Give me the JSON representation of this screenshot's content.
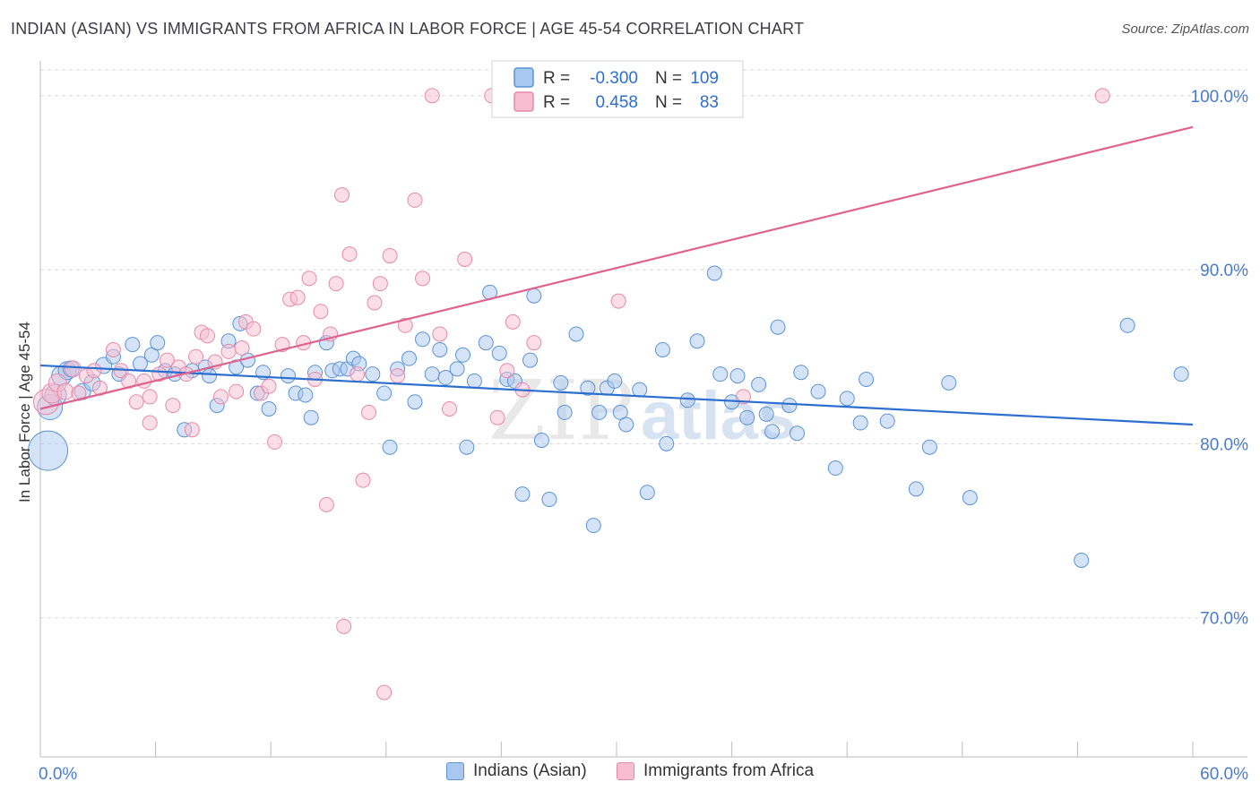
{
  "header": {
    "title": "INDIAN (ASIAN) VS IMMIGRANTS FROM AFRICA IN LABOR FORCE | AGE 45-54 CORRELATION CHART",
    "source": "Source: ZipAtlas.com"
  },
  "watermark": {
    "zip": "ZIP",
    "atlas": "atlas"
  },
  "legend_box": {
    "rows": [
      {
        "r_label": "R =",
        "r_value": "-0.300",
        "n_label": "N =",
        "n_value": "109"
      },
      {
        "r_label": "R =",
        "r_value": "0.458",
        "n_label": "N =",
        "n_value": "83"
      }
    ]
  },
  "colors": {
    "blue_fill": "#a9c8f0",
    "blue_stroke": "#5b93d6",
    "blue_line": "#2d6fce",
    "pink_fill": "#f7bdd0",
    "pink_stroke": "#e58aa8",
    "pink_line": "#e0628f",
    "tick_label": "#4a7cc9",
    "grid": "#d9d9d9"
  },
  "chart_data": {
    "type": "scatter",
    "title": "INDIAN (ASIAN) VS IMMIGRANTS FROM AFRICA IN LABOR FORCE | AGE 45-54 CORRELATION CHART",
    "xlabel": "",
    "ylabel": "In Labor Force | Age 45-54",
    "xlim": [
      0,
      60
    ],
    "ylim": [
      62,
      102
    ],
    "x_tick_labels": [
      {
        "value": 0,
        "label": "0.0%"
      },
      {
        "value": 60,
        "label": "60.0%"
      }
    ],
    "y_tick_labels": [
      {
        "value": 70,
        "label": "70.0%"
      },
      {
        "value": 80,
        "label": "80.0%"
      },
      {
        "value": 90,
        "label": "90.0%"
      },
      {
        "value": 100,
        "label": "100.0%"
      }
    ],
    "grid": true,
    "legend_position": "top-center",
    "series": [
      {
        "name": "Indians (Asian)",
        "color": "#a9c8f0",
        "trend": {
          "x": [
            0,
            60
          ],
          "y": [
            84.5,
            81.1
          ]
        },
        "points": [
          [
            0.4,
            79.6,
            22
          ],
          [
            0.5,
            82.1,
            14
          ],
          [
            0.8,
            82.8,
            12
          ],
          [
            1.1,
            83.9,
            11
          ],
          [
            1.4,
            84.2,
            10
          ],
          [
            1.6,
            84.3,
            9
          ],
          [
            2.2,
            83.0,
            9
          ],
          [
            2.7,
            83.5,
            9
          ],
          [
            3.3,
            84.5,
            9
          ],
          [
            3.8,
            85.0,
            8
          ],
          [
            4.1,
            84.0,
            8
          ],
          [
            4.8,
            85.7,
            8
          ],
          [
            5.2,
            84.6,
            8
          ],
          [
            5.8,
            85.1,
            8
          ],
          [
            6.1,
            85.8,
            8
          ],
          [
            6.5,
            84.2,
            8
          ],
          [
            7.0,
            84.0,
            8
          ],
          [
            7.5,
            80.8,
            8
          ],
          [
            7.9,
            84.2,
            8
          ],
          [
            8.6,
            84.4,
            8
          ],
          [
            8.8,
            83.9,
            8
          ],
          [
            9.2,
            82.2,
            8
          ],
          [
            9.8,
            85.9,
            8
          ],
          [
            10.2,
            84.4,
            8
          ],
          [
            10.4,
            86.9,
            8
          ],
          [
            10.8,
            84.8,
            8
          ],
          [
            11.3,
            82.9,
            8
          ],
          [
            11.6,
            84.1,
            8
          ],
          [
            11.9,
            82.0,
            8
          ],
          [
            12.9,
            83.9,
            8
          ],
          [
            13.3,
            82.9,
            8
          ],
          [
            13.8,
            82.8,
            8
          ],
          [
            14.1,
            81.5,
            8
          ],
          [
            14.3,
            84.1,
            8
          ],
          [
            14.9,
            85.8,
            8
          ],
          [
            15.2,
            84.2,
            8
          ],
          [
            15.6,
            84.3,
            8
          ],
          [
            16.0,
            84.3,
            8
          ],
          [
            16.3,
            84.9,
            8
          ],
          [
            16.6,
            84.6,
            8
          ],
          [
            17.3,
            84.0,
            8
          ],
          [
            17.9,
            82.9,
            8
          ],
          [
            18.2,
            79.8,
            8
          ],
          [
            18.6,
            84.3,
            8
          ],
          [
            19.2,
            84.9,
            8
          ],
          [
            19.5,
            82.4,
            8
          ],
          [
            19.9,
            86.0,
            8
          ],
          [
            20.4,
            84.0,
            8
          ],
          [
            20.8,
            85.4,
            8
          ],
          [
            21.1,
            83.8,
            8
          ],
          [
            21.7,
            84.3,
            8
          ],
          [
            22.0,
            85.1,
            8
          ],
          [
            22.2,
            79.8,
            8
          ],
          [
            22.6,
            83.6,
            8
          ],
          [
            23.2,
            85.8,
            8
          ],
          [
            23.4,
            88.7,
            8
          ],
          [
            23.9,
            85.2,
            8
          ],
          [
            24.3,
            83.7,
            8
          ],
          [
            24.7,
            83.6,
            8
          ],
          [
            25.1,
            77.1,
            8
          ],
          [
            25.5,
            84.8,
            8
          ],
          [
            25.7,
            88.5,
            8
          ],
          [
            26.1,
            80.2,
            8
          ],
          [
            26.5,
            76.8,
            8
          ],
          [
            27.1,
            83.5,
            8
          ],
          [
            27.3,
            81.8,
            8
          ],
          [
            27.9,
            86.3,
            8
          ],
          [
            28.5,
            83.2,
            8
          ],
          [
            28.8,
            75.3,
            8
          ],
          [
            29.1,
            81.8,
            8
          ],
          [
            29.5,
            83.2,
            8
          ],
          [
            29.9,
            83.6,
            8
          ],
          [
            30.2,
            81.8,
            8
          ],
          [
            30.5,
            81.1,
            8
          ],
          [
            31.2,
            83.1,
            8
          ],
          [
            31.6,
            77.2,
            8
          ],
          [
            32.4,
            85.4,
            8
          ],
          [
            32.6,
            80.0,
            8
          ],
          [
            33.7,
            82.5,
            8
          ],
          [
            34.2,
            85.9,
            8
          ],
          [
            35.1,
            89.8,
            8
          ],
          [
            35.4,
            84.0,
            8
          ],
          [
            36.0,
            82.4,
            8
          ],
          [
            36.3,
            83.9,
            8
          ],
          [
            36.8,
            81.5,
            8
          ],
          [
            37.4,
            83.4,
            8
          ],
          [
            37.8,
            81.7,
            8
          ],
          [
            38.1,
            80.7,
            8
          ],
          [
            38.4,
            86.7,
            8
          ],
          [
            39.0,
            82.2,
            8
          ],
          [
            39.4,
            80.6,
            8
          ],
          [
            39.6,
            84.1,
            8
          ],
          [
            40.5,
            83.0,
            8
          ],
          [
            41.4,
            78.6,
            8
          ],
          [
            42.0,
            82.6,
            8
          ],
          [
            42.7,
            81.2,
            8
          ],
          [
            43.0,
            83.7,
            8
          ],
          [
            44.1,
            81.3,
            8
          ],
          [
            45.6,
            77.4,
            8
          ],
          [
            46.3,
            79.8,
            8
          ],
          [
            47.3,
            83.5,
            8
          ],
          [
            48.4,
            76.9,
            8
          ],
          [
            54.2,
            73.3,
            8
          ],
          [
            56.6,
            86.8,
            8
          ],
          [
            59.4,
            84.0,
            8
          ]
        ]
      },
      {
        "name": "Immigrants from Africa",
        "color": "#f7bdd0",
        "trend": {
          "x": [
            0,
            60
          ],
          "y": [
            82.0,
            98.2
          ]
        },
        "points": [
          [
            0.3,
            82.4,
            14
          ],
          [
            0.6,
            82.9,
            11
          ],
          [
            0.9,
            83.5,
            10
          ],
          [
            1.3,
            83.0,
            9
          ],
          [
            1.7,
            84.3,
            9
          ],
          [
            2.0,
            82.9,
            8
          ],
          [
            2.4,
            83.9,
            8
          ],
          [
            2.8,
            84.2,
            8
          ],
          [
            3.1,
            83.2,
            8
          ],
          [
            3.8,
            85.4,
            8
          ],
          [
            4.2,
            84.2,
            8
          ],
          [
            4.6,
            83.6,
            8
          ],
          [
            5.0,
            82.4,
            8
          ],
          [
            5.4,
            83.6,
            8
          ],
          [
            5.7,
            82.7,
            8
          ],
          [
            5.7,
            81.2,
            8
          ],
          [
            6.2,
            84.0,
            8
          ],
          [
            6.6,
            84.8,
            8
          ],
          [
            6.9,
            82.2,
            8
          ],
          [
            7.2,
            84.4,
            8
          ],
          [
            7.6,
            84.0,
            8
          ],
          [
            7.9,
            80.8,
            8
          ],
          [
            8.1,
            85.0,
            8
          ],
          [
            8.4,
            86.4,
            8
          ],
          [
            8.7,
            86.2,
            8
          ],
          [
            9.1,
            84.7,
            8
          ],
          [
            9.4,
            82.7,
            8
          ],
          [
            9.8,
            85.3,
            8
          ],
          [
            10.2,
            83.0,
            8
          ],
          [
            10.5,
            85.5,
            8
          ],
          [
            10.7,
            87.0,
            8
          ],
          [
            11.1,
            86.6,
            8
          ],
          [
            11.5,
            82.9,
            8
          ],
          [
            11.9,
            83.3,
            8
          ],
          [
            12.2,
            80.1,
            8
          ],
          [
            12.6,
            85.7,
            8
          ],
          [
            13.0,
            88.3,
            8
          ],
          [
            13.4,
            88.4,
            8
          ],
          [
            13.7,
            85.8,
            8
          ],
          [
            14.0,
            89.5,
            8
          ],
          [
            14.3,
            83.7,
            8
          ],
          [
            14.6,
            87.6,
            8
          ],
          [
            14.9,
            76.5,
            8
          ],
          [
            15.1,
            86.3,
            8
          ],
          [
            15.4,
            89.2,
            8
          ],
          [
            15.7,
            94.3,
            8
          ],
          [
            15.8,
            69.5,
            8
          ],
          [
            16.1,
            90.9,
            8
          ],
          [
            16.5,
            84.0,
            8
          ],
          [
            16.8,
            77.9,
            8
          ],
          [
            17.1,
            81.8,
            8
          ],
          [
            17.4,
            88.1,
            8
          ],
          [
            17.7,
            89.2,
            8
          ],
          [
            17.9,
            65.7,
            8
          ],
          [
            18.2,
            90.8,
            8
          ],
          [
            18.6,
            83.9,
            8
          ],
          [
            19.0,
            86.8,
            8
          ],
          [
            19.5,
            94.0,
            8
          ],
          [
            19.9,
            89.5,
            8
          ],
          [
            20.4,
            100.0,
            8
          ],
          [
            20.8,
            86.3,
            8
          ],
          [
            21.3,
            82.0,
            8
          ],
          [
            22.1,
            90.6,
            8
          ],
          [
            23.5,
            100.0,
            8
          ],
          [
            23.8,
            81.5,
            8
          ],
          [
            24.3,
            84.2,
            8
          ],
          [
            24.6,
            87.0,
            8
          ],
          [
            25.1,
            83.1,
            8
          ],
          [
            25.7,
            85.8,
            8
          ],
          [
            30.1,
            88.2,
            8
          ],
          [
            36.6,
            82.7,
            8
          ],
          [
            55.3,
            100.0,
            8
          ]
        ]
      }
    ]
  }
}
